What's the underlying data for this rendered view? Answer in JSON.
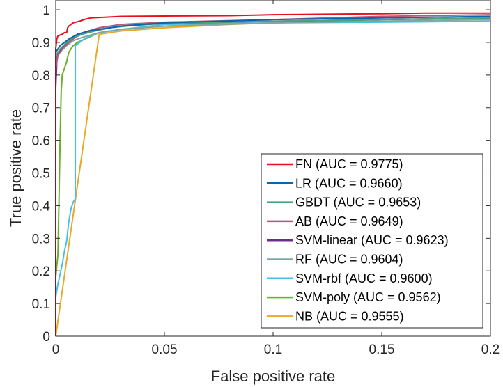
{
  "chart_data": {
    "type": "line",
    "title": "",
    "xlabel": "False positive rate",
    "ylabel": "True positive rate",
    "xlim": [
      0,
      0.2
    ],
    "ylim": [
      0,
      1.03
    ],
    "xticks": [
      0,
      0.05,
      0.1,
      0.15,
      0.2
    ],
    "xtick_labels": [
      "0",
      "0.05",
      "0.1",
      "0.15",
      "0.2"
    ],
    "yticks": [
      0,
      0.1,
      0.2,
      0.3,
      0.4,
      0.5,
      0.6,
      0.7,
      0.8,
      0.9,
      1
    ],
    "ytick_labels": [
      "0",
      "0.1",
      "0.2",
      "0.3",
      "0.4",
      "0.5",
      "0.6",
      "0.7",
      "0.8",
      "0.9",
      "1"
    ],
    "grid": false,
    "legend_position": "bottom-right",
    "series": [
      {
        "name": "FN (AUC = 0.9775)",
        "color": "#e8101e",
        "points": [
          [
            0,
            0
          ],
          [
            0,
            0.88
          ],
          [
            0.0005,
            0.91
          ],
          [
            0.001,
            0.92
          ],
          [
            0.003,
            0.925
          ],
          [
            0.004,
            0.93
          ],
          [
            0.005,
            0.93
          ],
          [
            0.0055,
            0.945
          ],
          [
            0.006,
            0.95
          ],
          [
            0.007,
            0.955
          ],
          [
            0.008,
            0.96
          ],
          [
            0.011,
            0.965
          ],
          [
            0.013,
            0.97
          ],
          [
            0.016,
            0.975
          ],
          [
            0.025,
            0.978
          ],
          [
            0.03,
            0.98
          ],
          [
            0.05,
            0.981
          ],
          [
            0.08,
            0.982
          ],
          [
            0.1,
            0.985
          ],
          [
            0.15,
            0.988
          ],
          [
            0.17,
            0.99
          ],
          [
            0.2,
            0.99
          ]
        ]
      },
      {
        "name": "LR (AUC = 0.9660)",
        "color": "#0b64ae",
        "points": [
          [
            0,
            0
          ],
          [
            0,
            0.87
          ],
          [
            0.002,
            0.89
          ],
          [
            0.004,
            0.9
          ],
          [
            0.006,
            0.91
          ],
          [
            0.01,
            0.925
          ],
          [
            0.015,
            0.935
          ],
          [
            0.02,
            0.94
          ],
          [
            0.03,
            0.95
          ],
          [
            0.05,
            0.96
          ],
          [
            0.1,
            0.97
          ],
          [
            0.15,
            0.975
          ],
          [
            0.2,
            0.98
          ]
        ]
      },
      {
        "name": "GBDT (AUC = 0.9653)",
        "color": "#4aa57a",
        "points": [
          [
            0,
            0
          ],
          [
            0,
            0.86
          ],
          [
            0.002,
            0.88
          ],
          [
            0.005,
            0.9
          ],
          [
            0.008,
            0.915
          ],
          [
            0.012,
            0.925
          ],
          [
            0.018,
            0.935
          ],
          [
            0.025,
            0.945
          ],
          [
            0.04,
            0.955
          ],
          [
            0.06,
            0.96
          ],
          [
            0.1,
            0.965
          ],
          [
            0.15,
            0.97
          ],
          [
            0.2,
            0.975
          ]
        ]
      },
      {
        "name": "AB (AUC = 0.9649)",
        "color": "#b05a7d",
        "points": [
          [
            0,
            0
          ],
          [
            0,
            0.82
          ],
          [
            0.001,
            0.86
          ],
          [
            0.003,
            0.88
          ],
          [
            0.006,
            0.9
          ],
          [
            0.01,
            0.92
          ],
          [
            0.015,
            0.935
          ],
          [
            0.02,
            0.945
          ],
          [
            0.03,
            0.955
          ],
          [
            0.05,
            0.962
          ],
          [
            0.1,
            0.97
          ],
          [
            0.15,
            0.98
          ],
          [
            0.2,
            0.985
          ]
        ]
      },
      {
        "name": "SVM-linear (AUC = 0.9623)",
        "color": "#6c2e8c",
        "points": [
          [
            0,
            0
          ],
          [
            0,
            0.76
          ],
          [
            0.0005,
            0.84
          ],
          [
            0.001,
            0.87
          ],
          [
            0.004,
            0.89
          ],
          [
            0.007,
            0.91
          ],
          [
            0.012,
            0.925
          ],
          [
            0.02,
            0.94
          ],
          [
            0.03,
            0.95
          ],
          [
            0.05,
            0.958
          ],
          [
            0.1,
            0.965
          ],
          [
            0.15,
            0.97
          ],
          [
            0.2,
            0.975
          ]
        ]
      },
      {
        "name": "RF (AUC = 0.9604)",
        "color": "#7fa7a8",
        "points": [
          [
            0,
            0
          ],
          [
            0,
            0.85
          ],
          [
            0.002,
            0.87
          ],
          [
            0.005,
            0.89
          ],
          [
            0.008,
            0.905
          ],
          [
            0.012,
            0.915
          ],
          [
            0.02,
            0.93
          ],
          [
            0.03,
            0.94
          ],
          [
            0.05,
            0.95
          ],
          [
            0.1,
            0.96
          ],
          [
            0.15,
            0.965
          ],
          [
            0.2,
            0.97
          ]
        ]
      },
      {
        "name": "SVM-rbf (AUC = 0.9600)",
        "color": "#46c0e8",
        "points": [
          [
            0,
            0
          ],
          [
            0,
            0.12
          ],
          [
            0.001,
            0.16
          ],
          [
            0.002,
            0.19
          ],
          [
            0.003,
            0.22
          ],
          [
            0.004,
            0.26
          ],
          [
            0.005,
            0.29
          ],
          [
            0.006,
            0.35
          ],
          [
            0.007,
            0.39
          ],
          [
            0.008,
            0.41
          ],
          [
            0.009,
            0.42
          ],
          [
            0.009,
            0.89
          ],
          [
            0.011,
            0.9
          ],
          [
            0.013,
            0.91
          ],
          [
            0.016,
            0.92
          ],
          [
            0.02,
            0.93
          ],
          [
            0.03,
            0.94
          ],
          [
            0.05,
            0.955
          ],
          [
            0.1,
            0.96
          ],
          [
            0.15,
            0.962
          ],
          [
            0.2,
            0.965
          ]
        ]
      },
      {
        "name": "SVM-poly (AUC = 0.9562)",
        "color": "#6aaf2a",
        "points": [
          [
            0,
            0
          ],
          [
            0,
            0.18
          ],
          [
            0.001,
            0.25
          ],
          [
            0.0015,
            0.42
          ],
          [
            0.002,
            0.6
          ],
          [
            0.0025,
            0.75
          ],
          [
            0.003,
            0.8
          ],
          [
            0.004,
            0.82
          ],
          [
            0.005,
            0.84
          ],
          [
            0.006,
            0.87
          ],
          [
            0.008,
            0.89
          ],
          [
            0.01,
            0.9
          ],
          [
            0.015,
            0.915
          ],
          [
            0.02,
            0.93
          ],
          [
            0.03,
            0.94
          ],
          [
            0.05,
            0.95
          ],
          [
            0.1,
            0.96
          ],
          [
            0.15,
            0.97
          ],
          [
            0.2,
            0.975
          ]
        ]
      },
      {
        "name": "NB (AUC = 0.9555)",
        "color": "#e9a825",
        "points": [
          [
            0,
            0
          ],
          [
            0.02,
            0.925
          ],
          [
            0.03,
            0.935
          ],
          [
            0.05,
            0.945
          ],
          [
            0.08,
            0.955
          ],
          [
            0.1,
            0.96
          ],
          [
            0.15,
            0.965
          ],
          [
            0.2,
            0.97
          ]
        ]
      }
    ]
  }
}
